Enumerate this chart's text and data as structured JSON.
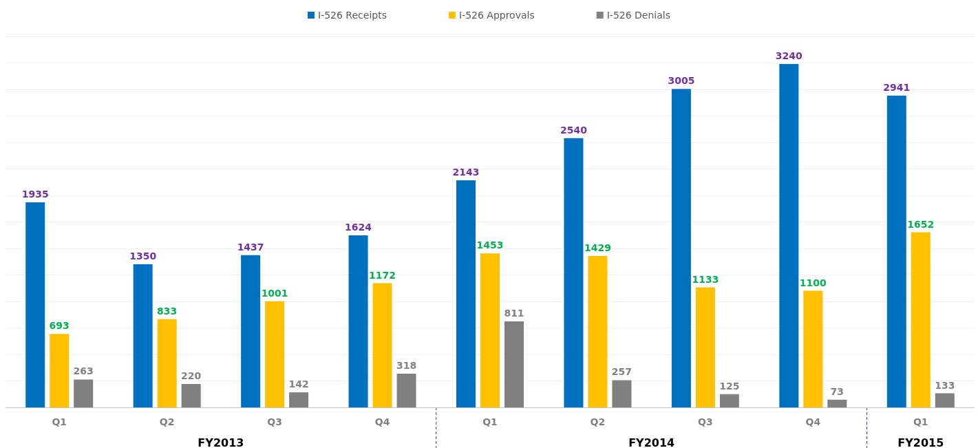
{
  "chart_data": {
    "type": "bar",
    "categories": [
      "Q1",
      "Q2",
      "Q3",
      "Q4",
      "Q1",
      "Q2",
      "Q3",
      "Q4",
      "Q1"
    ],
    "series": [
      {
        "name": "I-526 Receipts",
        "color": "#0070c0",
        "values": [
          1935,
          1350,
          1437,
          1624,
          2143,
          2540,
          3005,
          3240,
          2941
        ]
      },
      {
        "name": "I-526 Approvals",
        "color": "#ffc000",
        "values": [
          693,
          833,
          1001,
          1172,
          1453,
          1429,
          1133,
          1100,
          1652
        ]
      },
      {
        "name": "I-526 Denials",
        "color": "#808080",
        "values": [
          263,
          220,
          142,
          318,
          811,
          257,
          125,
          73,
          133
        ]
      }
    ],
    "annotations": [
      "FY2013",
      "FY2014",
      "FY2015"
    ],
    "ylim": [
      0,
      3500
    ],
    "yticks": [
      {
        "value": 0,
        "label": null
      },
      {
        "value": 250,
        "label": null
      },
      {
        "value": 500,
        "label": null
      },
      {
        "value": 750,
        "label": null
      },
      {
        "value": 1000,
        "label": null
      },
      {
        "value": 1250,
        "label": null
      },
      {
        "value": 1500,
        "label": null
      },
      {
        "value": 1750,
        "label": null
      },
      {
        "value": 2000,
        "label": null
      },
      {
        "value": 2250,
        "label": null
      },
      {
        "value": 2500,
        "label": null
      },
      {
        "value": 2750,
        "label": null
      },
      {
        "value": 3000,
        "label": null
      },
      {
        "value": 3250,
        "label": null
      },
      {
        "value": 3500,
        "label": null
      }
    ],
    "tick_labels": "x",
    "grid": "y",
    "legend": "top",
    "data_labels": true
  }
}
